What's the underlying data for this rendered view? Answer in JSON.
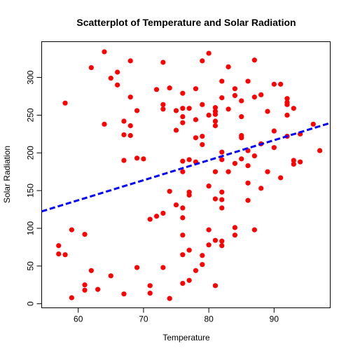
{
  "chart_data": {
    "type": "scatter",
    "title": "Scatterplot of Temperature and Solar Radiation",
    "xlabel": "Temperature",
    "ylabel": "Solar Radiation",
    "xlim": [
      54.4,
      98.6
    ],
    "ylim": [
      -5.4,
      347.4
    ],
    "x_ticks": [
      60,
      70,
      80,
      90
    ],
    "y_ticks": [
      0,
      50,
      100,
      150,
      200,
      250,
      300
    ],
    "point_color": "#ff0000",
    "regression_line": {
      "color": "#0000ff",
      "style": "dashed",
      "x": [
        54.4,
        98.6
      ],
      "y": [
        122.4,
        239.6
      ]
    },
    "grid": false,
    "points": [
      [
        57,
        66
      ],
      [
        57,
        77
      ],
      [
        58,
        65
      ],
      [
        58,
        266
      ],
      [
        59,
        8
      ],
      [
        59,
        98
      ],
      [
        61,
        92
      ],
      [
        61,
        18
      ],
      [
        61,
        25
      ],
      [
        62,
        313
      ],
      [
        62,
        44
      ],
      [
        63,
        19
      ],
      [
        64,
        334
      ],
      [
        64,
        238
      ],
      [
        65,
        37
      ],
      [
        65,
        299
      ],
      [
        66,
        307
      ],
      [
        66,
        290
      ],
      [
        67,
        13
      ],
      [
        67,
        190
      ],
      [
        67,
        224
      ],
      [
        67,
        242
      ],
      [
        68,
        236
      ],
      [
        68,
        223
      ],
      [
        68,
        322
      ],
      [
        68,
        274
      ],
      [
        69,
        48
      ],
      [
        69,
        193
      ],
      [
        69,
        256
      ],
      [
        70,
        192
      ],
      [
        71,
        24
      ],
      [
        71,
        14
      ],
      [
        71,
        112
      ],
      [
        72,
        116
      ],
      [
        72,
        284
      ],
      [
        73,
        120
      ],
      [
        73,
        48
      ],
      [
        73,
        258
      ],
      [
        73,
        264
      ],
      [
        73,
        320
      ],
      [
        74,
        7
      ],
      [
        74,
        149
      ],
      [
        74,
        286
      ],
      [
        75,
        131
      ],
      [
        75,
        256
      ],
      [
        75,
        230
      ],
      [
        76,
        27
      ],
      [
        76,
        65
      ],
      [
        76,
        91
      ],
      [
        76,
        114
      ],
      [
        76,
        127
      ],
      [
        76,
        175
      ],
      [
        76,
        189
      ],
      [
        76,
        240
      ],
      [
        76,
        248
      ],
      [
        76,
        259
      ],
      [
        76,
        279
      ],
      [
        77,
        31
      ],
      [
        77,
        71
      ],
      [
        77,
        144
      ],
      [
        77,
        148
      ],
      [
        77,
        191
      ],
      [
        77,
        259
      ],
      [
        78,
        44
      ],
      [
        78,
        188
      ],
      [
        78,
        220
      ],
      [
        78,
        244
      ],
      [
        78,
        285
      ],
      [
        79,
        52
      ],
      [
        79,
        64
      ],
      [
        79,
        211
      ],
      [
        79,
        222
      ],
      [
        79,
        264
      ],
      [
        79,
        322
      ],
      [
        80,
        78
      ],
      [
        80,
        98
      ],
      [
        80,
        156
      ],
      [
        80,
        250
      ],
      [
        80,
        332
      ],
      [
        81,
        24
      ],
      [
        81,
        84
      ],
      [
        81,
        139
      ],
      [
        81,
        175
      ],
      [
        81,
        236
      ],
      [
        81,
        242
      ],
      [
        81,
        251
      ],
      [
        81,
        255
      ],
      [
        81,
        260
      ],
      [
        82,
        77
      ],
      [
        82,
        83
      ],
      [
        82,
        127
      ],
      [
        82,
        138
      ],
      [
        82,
        148
      ],
      [
        82,
        191
      ],
      [
        82,
        201
      ],
      [
        82,
        273
      ],
      [
        82,
        295
      ],
      [
        83,
        175
      ],
      [
        83,
        258
      ],
      [
        83,
        314
      ],
      [
        84,
        91
      ],
      [
        84,
        101
      ],
      [
        84,
        186
      ],
      [
        84,
        276
      ],
      [
        84,
        285
      ],
      [
        85,
        192
      ],
      [
        85,
        220
      ],
      [
        85,
        223
      ],
      [
        85,
        248
      ],
      [
        85,
        269
      ],
      [
        86,
        137
      ],
      [
        86,
        160
      ],
      [
        86,
        183
      ],
      [
        86,
        203
      ],
      [
        86,
        295
      ],
      [
        87,
        98
      ],
      [
        87,
        196
      ],
      [
        87,
        274
      ],
      [
        87,
        323
      ],
      [
        88,
        153
      ],
      [
        88,
        212
      ],
      [
        88,
        277
      ],
      [
        89,
        175
      ],
      [
        89,
        255
      ],
      [
        90,
        207
      ],
      [
        90,
        229
      ],
      [
        90,
        291
      ],
      [
        91,
        167
      ],
      [
        91,
        291
      ],
      [
        92,
        222
      ],
      [
        92,
        250
      ],
      [
        92,
        264
      ],
      [
        92,
        267
      ],
      [
        92,
        272
      ],
      [
        93,
        185
      ],
      [
        93,
        190
      ],
      [
        93,
        259
      ],
      [
        94,
        188
      ],
      [
        94,
        225
      ],
      [
        96,
        238
      ],
      [
        97,
        203
      ]
    ]
  }
}
